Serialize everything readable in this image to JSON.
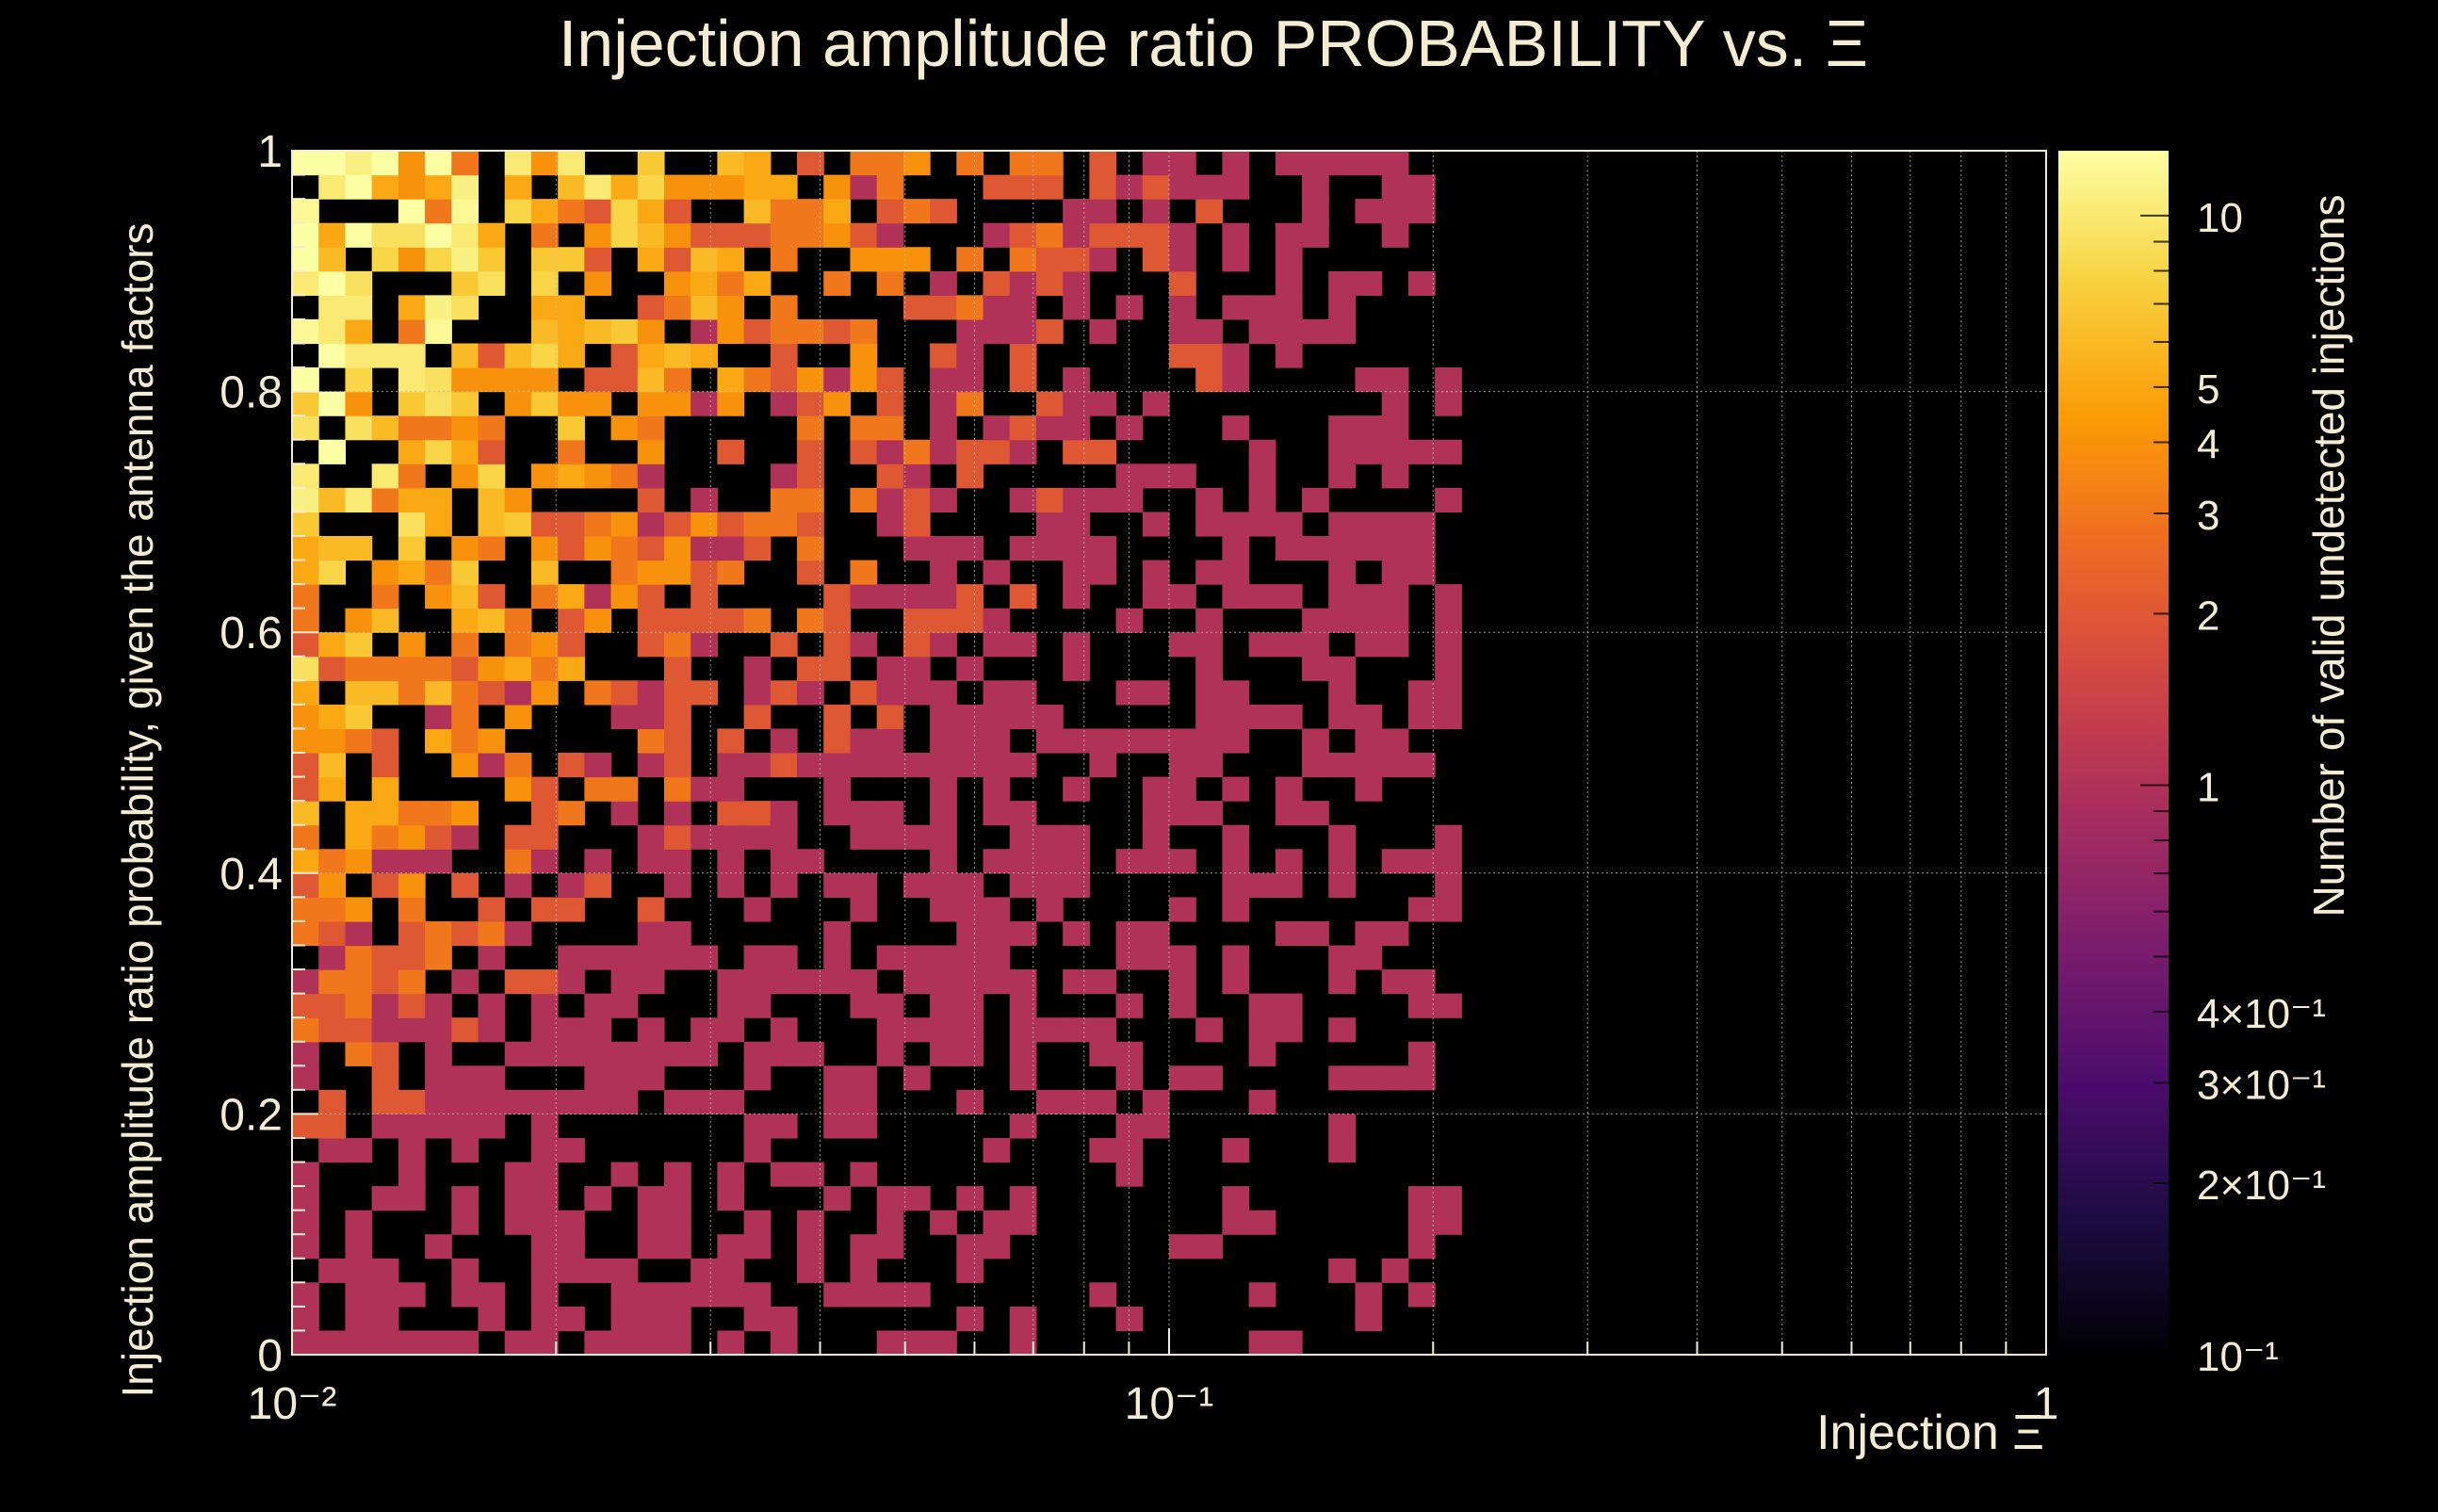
{
  "chart_data": {
    "type": "heatmap",
    "title": "Injection amplitude ratio PROBABILITY vs.  Ξ",
    "xlabel": "Injection Ξ",
    "ylabel": "Injection amplitude ratio probability, given the antenna factors",
    "colorbar_label": "Number of valid undetected injections",
    "x_scale": "log",
    "xlim": [
      0.01,
      1
    ],
    "ylim": [
      0,
      1
    ],
    "x_bins": 66,
    "y_bins": 50,
    "occupied_x_range": [
      0.01,
      0.21
    ],
    "color_scale": "log",
    "zlim": [
      0.1,
      13
    ],
    "x_ticks": [
      {
        "value": 0.01,
        "label": "10⁻²"
      },
      {
        "value": 0.1,
        "label": "10⁻¹"
      },
      {
        "value": 1,
        "label": "1"
      }
    ],
    "y_ticks": [
      {
        "value": 0,
        "label": "0"
      },
      {
        "value": 0.2,
        "label": "0.2"
      },
      {
        "value": 0.4,
        "label": "0.4"
      },
      {
        "value": 0.6,
        "label": "0.6"
      },
      {
        "value": 0.8,
        "label": "0.8"
      },
      {
        "value": 1,
        "label": "1"
      }
    ],
    "colorbar_ticks": [
      {
        "value": 0.1,
        "label": "10⁻¹"
      },
      {
        "value": 0.2,
        "label": "2×10⁻¹"
      },
      {
        "value": 0.3,
        "label": "3×10⁻¹"
      },
      {
        "value": 0.4,
        "label": "4×10⁻¹"
      },
      {
        "value": 1,
        "label": "1"
      },
      {
        "value": 2,
        "label": "2"
      },
      {
        "value": 3,
        "label": "3"
      },
      {
        "value": 4,
        "label": "4"
      },
      {
        "value": 5,
        "label": "5"
      },
      {
        "value": 10,
        "label": "10"
      }
    ],
    "cells_description": "Counts are highest (8-13) near x≈0.01-0.015, y≈0.7-0.95, decrease to 1-3 toward x≈0.2 and toward low y; many bins empty (0). No entries above x≈0.21.",
    "grid": true,
    "colormap": [
      "#000004",
      "#1b0c41",
      "#4a0c6b",
      "#781c6d",
      "#a52c60",
      "#cf4446",
      "#ed6925",
      "#fb9b06",
      "#f7d13d",
      "#fcffa4"
    ],
    "colors": {
      "background": "#000000",
      "text": "#f5ecd2",
      "grid": "#bdbdbd"
    }
  }
}
